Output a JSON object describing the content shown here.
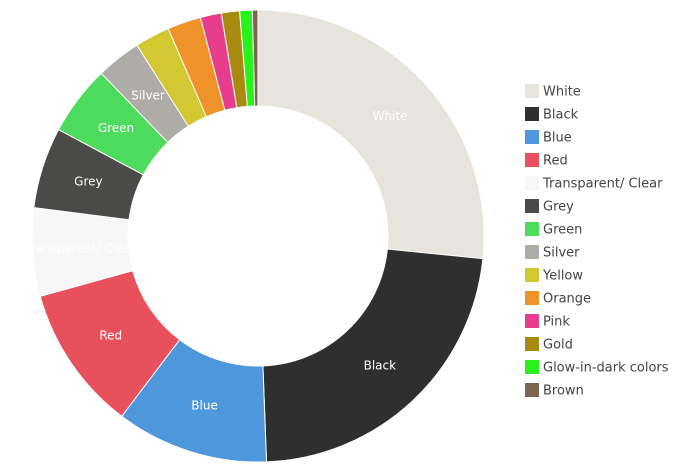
{
  "chart_data": {
    "type": "donut",
    "categories": [
      "White",
      "Black",
      "Blue",
      "Red",
      "Transparent/ Clear",
      "Grey",
      "Green",
      "Silver",
      "Yellow",
      "Orange",
      "Pink",
      "Gold",
      "Glow-in-dark colors",
      "Brown"
    ],
    "values": [
      26.6,
      22.8,
      10.9,
      10.4,
      6.3,
      5.8,
      5.0,
      3.2,
      2.5,
      2.4,
      1.5,
      1.3,
      0.9,
      0.4
    ],
    "colors": [
      "#e6e4dc",
      "#2f2f2f",
      "#4f97dc",
      "#e8505b",
      "#f7f7f7",
      "#4a4a48",
      "#4cdb5c",
      "#aeaca7",
      "#d4c832",
      "#f0922a",
      "#e63e8c",
      "#a88a10",
      "#27f21c",
      "#7d6550"
    ],
    "legend": "right"
  }
}
